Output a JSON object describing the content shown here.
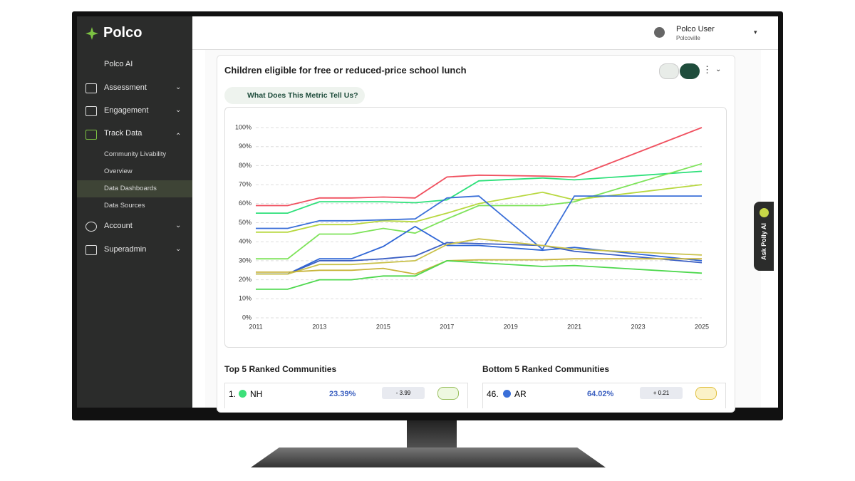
{
  "brand": "Polco",
  "nav": {
    "items": [
      "Polco AI",
      "Assessment",
      "Engagement",
      "Track Data"
    ],
    "sub_items": [
      "Community Livability",
      "Overview",
      "Data Dashboards",
      "Data Sources"
    ],
    "bottom_items": [
      "Account",
      "Superadmin"
    ]
  },
  "header": {
    "user": "Polco User",
    "org": "Polcoville"
  },
  "card": {
    "title": "Children eligible for free or reduced-price school lunch",
    "insight_button": "What Does This Metric Tell Us?"
  },
  "side_tab": "Ask Polly AI",
  "chart_data": {
    "type": "line",
    "x": [
      2011,
      2012,
      2013,
      2014,
      2015,
      2016,
      2017,
      2018,
      2020,
      2021,
      2025
    ],
    "xlim": [
      2011,
      2025
    ],
    "xticks": [
      2011,
      2013,
      2015,
      2017,
      2019,
      2021,
      2023,
      2025
    ],
    "ylim": [
      0,
      100
    ],
    "yticks": [
      {
        "value": 0,
        "label": "0%"
      },
      {
        "value": 10,
        "label": "10%"
      },
      {
        "value": 20,
        "label": "20%"
      },
      {
        "value": 30,
        "label": "30%"
      },
      {
        "value": 40,
        "label": "40%"
      },
      {
        "value": 50,
        "label": "50%"
      },
      {
        "value": 60,
        "label": "60%"
      },
      {
        "value": 70,
        "label": "70%"
      },
      {
        "value": 80,
        "label": "80%"
      },
      {
        "value": 90,
        "label": "90%"
      },
      {
        "value": 100,
        "label": "100%"
      }
    ],
    "grid": true,
    "series": [
      {
        "color": "#f0505f",
        "values": [
          59,
          59,
          63,
          63,
          63.5,
          63,
          74,
          75,
          74.5,
          74,
          100
        ]
      },
      {
        "color": "#2ee07a",
        "values": [
          55,
          55,
          61,
          61,
          61,
          60.5,
          62,
          72,
          73.5,
          72.5,
          77
        ]
      },
      {
        "color": "#7ee35a",
        "values": [
          31,
          31,
          44,
          44,
          47,
          44.5,
          52,
          59,
          59,
          61,
          81
        ]
      },
      {
        "color": "#b8d840",
        "values": [
          45,
          45,
          49,
          49,
          51,
          50.5,
          55,
          60,
          66,
          62,
          70
        ]
      },
      {
        "color": "#3a6fd8",
        "values": [
          47,
          47,
          51,
          51,
          51.5,
          52,
          63,
          64,
          36,
          64,
          64
        ]
      },
      {
        "color": "#2f66d6",
        "values": [
          23,
          23,
          31,
          31,
          37.5,
          48,
          38,
          38,
          35.5,
          37,
          30
        ]
      },
      {
        "color": "#3b5fc4",
        "values": [
          23,
          23,
          30,
          30,
          31,
          32.5,
          39.5,
          39,
          38,
          35,
          29
        ]
      },
      {
        "color": "#c9c14a",
        "values": [
          23,
          23,
          28,
          28,
          29,
          30,
          38.5,
          41.5,
          38,
          36,
          33
        ]
      },
      {
        "color": "#c8b43a",
        "values": [
          24,
          24,
          25,
          25,
          26,
          23,
          30,
          30.5,
          30.5,
          31,
          31
        ]
      },
      {
        "color": "#4ed84e",
        "values": [
          15,
          15,
          20,
          20,
          22,
          22,
          30,
          29,
          27,
          27.5,
          23.5
        ]
      }
    ]
  },
  "rankings": {
    "top": {
      "title": "Top 5 Ranked Communities",
      "rows": [
        [
          "1.",
          "NH",
          "23.39%",
          "- 3.99"
        ]
      ]
    },
    "bottom": {
      "title": "Bottom 5 Ranked Communities",
      "rows": [
        [
          "46.",
          "AR",
          "64.02%",
          "+ 0.21"
        ]
      ]
    }
  }
}
